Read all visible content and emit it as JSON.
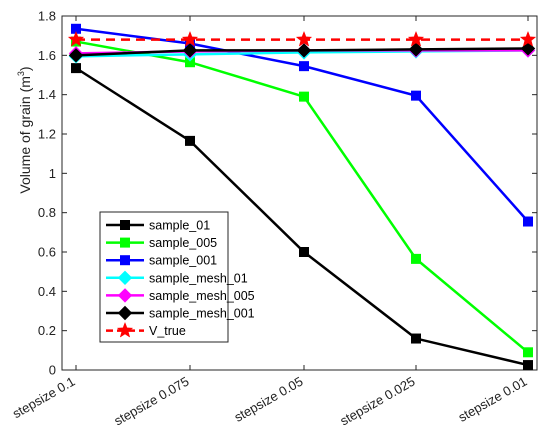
{
  "chart_data": {
    "type": "line",
    "categories": [
      "stepsize 0.1",
      "stepsize 0.075",
      "stepsize 0.05",
      "stepsize 0.025",
      "stepsize 0.01"
    ],
    "ylabel": "Volume of grain (m³)",
    "ylabel_main": "Volume of grain (m",
    "ylabel_sup": "3",
    "ylabel_end": ")",
    "ylim": [
      0,
      1.8
    ],
    "yticks": [
      "0",
      "0.2",
      "0.4",
      "0.6",
      "0.8",
      "1",
      "1.2",
      "1.4",
      "1.6",
      "1.8"
    ],
    "grid": false,
    "legend_position": "lower-left",
    "series": [
      {
        "name": "sample_01",
        "values": [
          1.535,
          1.165,
          0.6,
          0.16,
          0.025
        ],
        "color": "#000000",
        "marker": "square",
        "dash": false
      },
      {
        "name": "sample_005",
        "values": [
          1.67,
          1.565,
          1.39,
          0.565,
          0.09
        ],
        "color": "#00ff00",
        "marker": "square",
        "dash": false
      },
      {
        "name": "sample_001",
        "values": [
          1.735,
          1.66,
          1.545,
          1.395,
          0.755
        ],
        "color": "#0000ff",
        "marker": "square",
        "dash": false
      },
      {
        "name": "sample_mesh_01",
        "values": [
          1.595,
          1.605,
          1.615,
          1.62,
          1.625
        ],
        "color": "#00ffff",
        "marker": "diamond",
        "dash": false
      },
      {
        "name": "sample_mesh_005",
        "values": [
          1.61,
          1.62,
          1.625,
          1.625,
          1.625
        ],
        "color": "#ff00ff",
        "marker": "diamond",
        "dash": false
      },
      {
        "name": "sample_mesh_001",
        "values": [
          1.6,
          1.625,
          1.625,
          1.63,
          1.635
        ],
        "color": "#000000",
        "marker": "diamond",
        "dash": false
      },
      {
        "name": "V_true",
        "values": [
          1.68,
          1.68,
          1.68,
          1.68,
          1.68
        ],
        "color": "#ff0000",
        "marker": "star",
        "dash": true
      }
    ]
  }
}
